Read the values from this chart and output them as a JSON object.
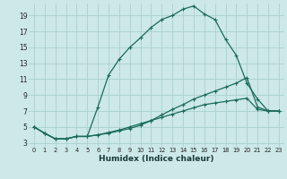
{
  "xlabel": "Humidex (Indice chaleur)",
  "bg_color": "#cce8e8",
  "grid_color": "#aad0d0",
  "line_color": "#1a6b5a",
  "xlim": [
    -0.5,
    23.5
  ],
  "ylim": [
    2.5,
    20.5
  ],
  "xticks": [
    0,
    1,
    2,
    3,
    4,
    5,
    6,
    7,
    8,
    9,
    10,
    11,
    12,
    13,
    14,
    15,
    16,
    17,
    18,
    19,
    20,
    21,
    22,
    23
  ],
  "yticks": [
    3,
    5,
    7,
    9,
    11,
    13,
    15,
    17,
    19
  ],
  "series1_x": [
    0,
    1,
    2,
    3,
    4,
    5,
    6,
    7,
    8,
    9,
    10,
    11,
    12,
    13,
    14,
    15,
    16,
    17,
    18,
    19,
    20,
    21,
    22,
    23
  ],
  "series1_y": [
    5.0,
    4.2,
    3.5,
    3.5,
    3.8,
    3.8,
    7.5,
    11.5,
    13.5,
    15.0,
    16.2,
    17.5,
    18.5,
    19.0,
    19.8,
    20.2,
    19.2,
    18.5,
    16.0,
    14.0,
    10.5,
    8.5,
    7.0,
    7.0
  ],
  "series2_x": [
    0,
    1,
    2,
    3,
    4,
    5,
    6,
    7,
    8,
    9,
    10,
    11,
    12,
    13,
    14,
    15,
    16,
    17,
    18,
    19,
    20,
    21,
    22,
    23
  ],
  "series2_y": [
    5.0,
    4.2,
    3.5,
    3.5,
    3.8,
    3.8,
    4.0,
    4.2,
    4.5,
    4.8,
    5.2,
    5.8,
    6.5,
    7.2,
    7.8,
    8.5,
    9.0,
    9.5,
    10.0,
    10.5,
    11.2,
    7.5,
    7.0,
    7.0
  ],
  "series3_x": [
    0,
    1,
    2,
    3,
    4,
    5,
    6,
    7,
    8,
    9,
    10,
    11,
    12,
    13,
    14,
    15,
    16,
    17,
    18,
    19,
    20,
    21,
    22,
    23
  ],
  "series3_y": [
    5.0,
    4.2,
    3.5,
    3.5,
    3.8,
    3.8,
    4.0,
    4.3,
    4.6,
    5.0,
    5.4,
    5.8,
    6.2,
    6.6,
    7.0,
    7.4,
    7.8,
    8.0,
    8.2,
    8.4,
    8.6,
    7.2,
    7.0,
    7.0
  ],
  "tick_fontsize": 5.0,
  "xlabel_fontsize": 6.5,
  "marker_size": 3.5,
  "linewidth": 0.9
}
